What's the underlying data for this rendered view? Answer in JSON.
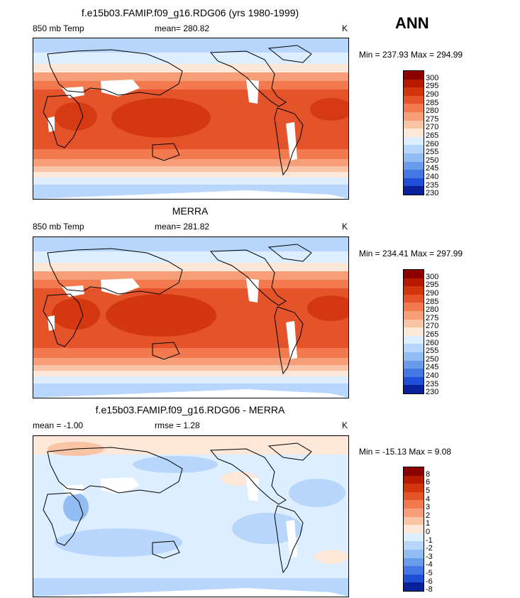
{
  "header": {
    "season": "ANN"
  },
  "panels": [
    {
      "title": "f.e15b03.FAMIP.f09_g16.RDG06 (yrs 1980-1999)",
      "left_label": "850 mb Temp",
      "stat_label": "mean= 280.82",
      "units": "K",
      "range_text": "Min = 237.93 Max = 294.99",
      "levels": [
        "300",
        "295",
        "290",
        "285",
        "280",
        "275",
        "270",
        "265",
        "260",
        "255",
        "250",
        "245",
        "240",
        "235",
        "230"
      ],
      "colors": [
        "#8b0000",
        "#b51a00",
        "#d2340c",
        "#e4532a",
        "#f27a4e",
        "#f69e78",
        "#f9c3a6",
        "#fde7d8",
        "#dceeff",
        "#b8d6fb",
        "#92bcf2",
        "#6a9ceb",
        "#4576e3",
        "#1f4fd6",
        "#0a1f9a"
      ]
    },
    {
      "title": "MERRA",
      "left_label": "850 mb Temp",
      "stat_label": "mean= 281.82",
      "units": "K",
      "range_text": "Min = 234.41 Max = 297.99",
      "levels": [
        "300",
        "295",
        "290",
        "285",
        "280",
        "275",
        "270",
        "265",
        "260",
        "255",
        "250",
        "245",
        "240",
        "235",
        "230"
      ],
      "colors": [
        "#8b0000",
        "#b51a00",
        "#d2340c",
        "#e4532a",
        "#f27a4e",
        "#f69e78",
        "#f9c3a6",
        "#fde7d8",
        "#dceeff",
        "#b8d6fb",
        "#92bcf2",
        "#6a9ceb",
        "#4576e3",
        "#1f4fd6",
        "#0a1f9a"
      ]
    },
    {
      "title": "f.e15b03.FAMIP.f09_g16.RDG06 - MERRA",
      "left_label": "mean =   -1.00",
      "stat_label": "rmse =    1.28",
      "units": "K",
      "range_text": "Min = -15.13 Max =    9.08",
      "levels": [
        "8",
        "6",
        "5",
        "4",
        "3",
        "2",
        "1",
        "0",
        "-1",
        "-2",
        "-3",
        "-4",
        "-5",
        "-6",
        "-8"
      ],
      "colors": [
        "#8b0000",
        "#b51a00",
        "#d2340c",
        "#e4532a",
        "#f27a4e",
        "#f69e78",
        "#f9c3a6",
        "#fde7d8",
        "#dceeff",
        "#b8d6fb",
        "#92bcf2",
        "#6a9ceb",
        "#4576e3",
        "#1f4fd6",
        "#0a1f9a"
      ]
    }
  ]
}
